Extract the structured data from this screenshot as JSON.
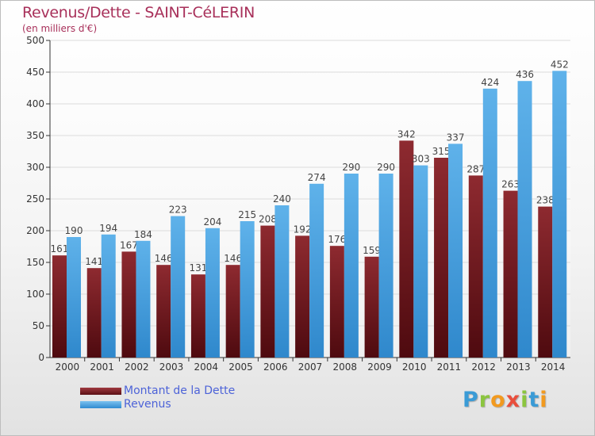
{
  "chart_data": {
    "type": "bar",
    "title": "Revenus/Dette - SAINT-CéLERIN",
    "subtitle": "(en milliers d'€)",
    "categories": [
      "2000",
      "2001",
      "2002",
      "2003",
      "2004",
      "2005",
      "2006",
      "2007",
      "2008",
      "2009",
      "2010",
      "2011",
      "2012",
      "2013",
      "2014"
    ],
    "series": [
      {
        "name": "Montant de la Dette",
        "color": "#7a1c22",
        "values": [
          161,
          141,
          167,
          146,
          131,
          146,
          208,
          192,
          176,
          159,
          342,
          315,
          287,
          263,
          238
        ]
      },
      {
        "name": "Revenus",
        "color": "#4ea6e4",
        "values": [
          190,
          194,
          184,
          223,
          204,
          215,
          240,
          274,
          290,
          290,
          303,
          337,
          424,
          436,
          452
        ]
      }
    ],
    "ylim": [
      0,
      500
    ],
    "yticks": [
      0,
      50,
      100,
      150,
      200,
      250,
      300,
      350,
      400,
      450,
      500
    ],
    "grid": true,
    "legend_position": "bottom-left"
  },
  "logo": {
    "letters": [
      "P",
      "r",
      "o",
      "x",
      "i",
      "t",
      "i"
    ]
  }
}
